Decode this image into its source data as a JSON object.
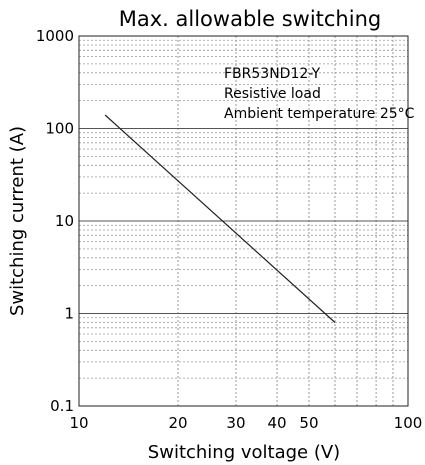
{
  "chart_data": {
    "type": "line",
    "title": "Max. allowable switching",
    "xlabel": "Switching voltage (V)",
    "ylabel": "Switching current (A)",
    "x_scale": "log",
    "y_scale": "log",
    "xlim": [
      10,
      100
    ],
    "ylim": [
      0.1,
      1000
    ],
    "grid": true,
    "x_ticks": [
      {
        "value": 10,
        "label": "10"
      },
      {
        "value": 20,
        "label": "20"
      },
      {
        "value": 30,
        "label": "30"
      },
      {
        "value": 40,
        "label": "40"
      },
      {
        "value": 50,
        "label": "50"
      },
      {
        "value": 100,
        "label": "100"
      }
    ],
    "y_ticks": [
      {
        "value": 0.1,
        "label": "0.1"
      },
      {
        "value": 1,
        "label": "1"
      },
      {
        "value": 10,
        "label": "10"
      },
      {
        "value": 100,
        "label": "100"
      },
      {
        "value": 1000,
        "label": "1000"
      }
    ],
    "annotations": [
      "FBR53ND12-Y",
      "Resistive load",
      "Ambient temperature 25°C"
    ],
    "series": [
      {
        "x": [
          12,
          60
        ],
        "y": [
          140,
          0.8
        ]
      }
    ]
  },
  "colors": {
    "line": "#222222",
    "grid": "#9a9a9a",
    "axis": "#222222"
  }
}
